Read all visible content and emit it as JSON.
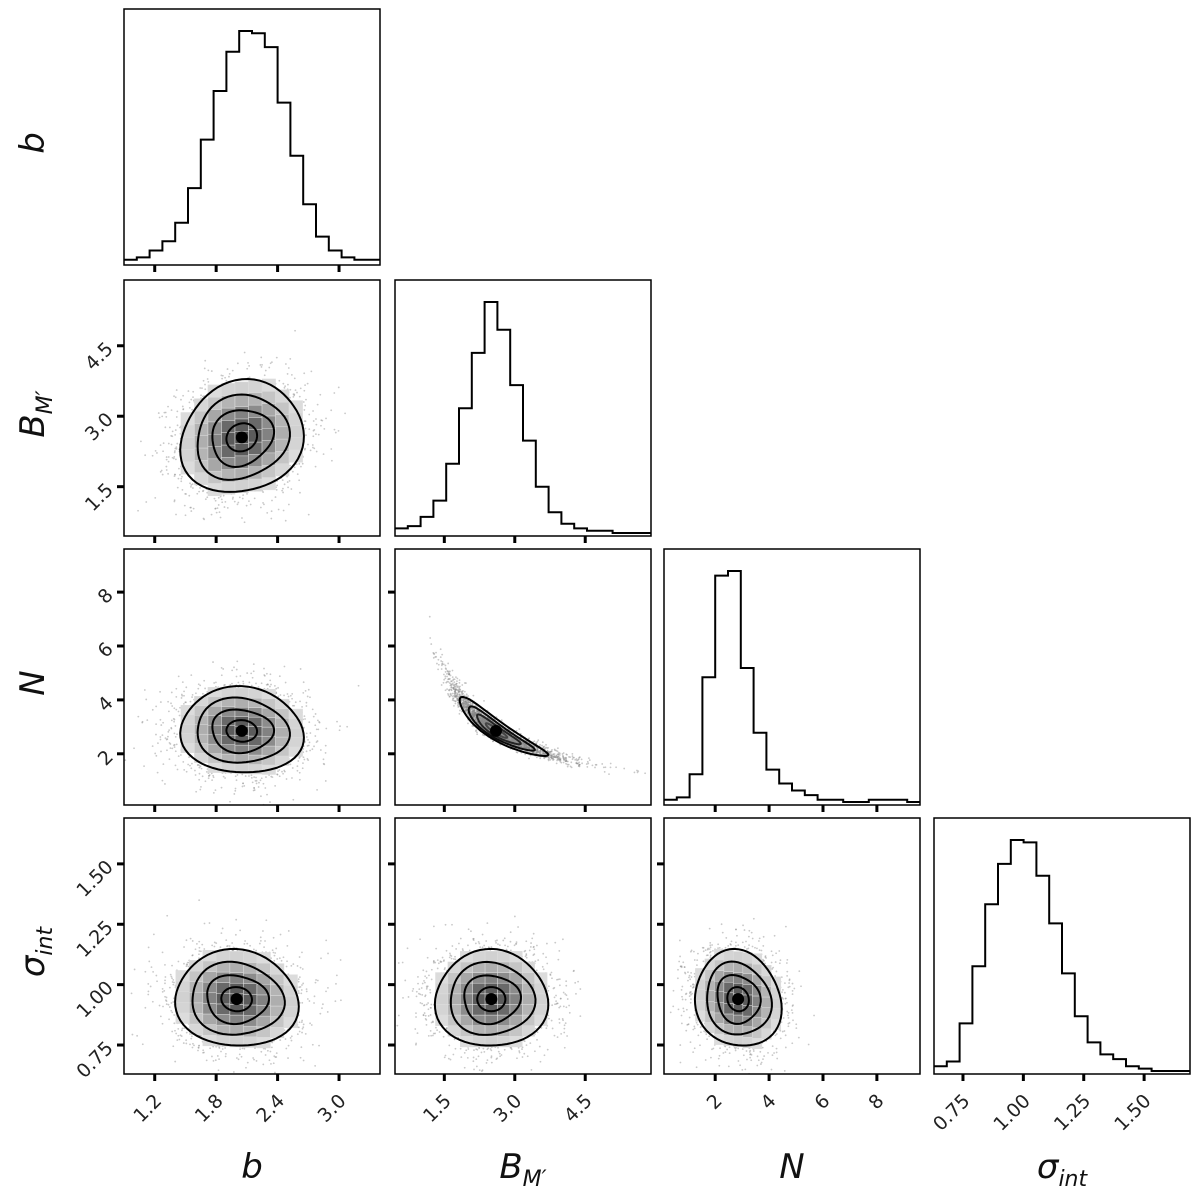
{
  "chart_data": {
    "type": "corner",
    "params": [
      {
        "key": "b",
        "label": "b",
        "sub": "",
        "range": [
          0.9,
          3.4
        ],
        "ticks": [
          1.2,
          1.8,
          2.4,
          3.0
        ],
        "tick_labels": [
          "1.2",
          "1.8",
          "2.4",
          "3.0"
        ]
      },
      {
        "key": "BM",
        "label": "B",
        "sub": "M′",
        "range": [
          0.45,
          5.9
        ],
        "ticks": [
          1.5,
          3.0,
          4.5
        ],
        "tick_labels": [
          "1.5",
          "3.0",
          "4.5"
        ]
      },
      {
        "key": "N",
        "label": "N",
        "sub": "",
        "range": [
          0.1,
          9.6
        ],
        "ticks": [
          2,
          4,
          6,
          8
        ],
        "tick_labels": [
          "2",
          "4",
          "6",
          "8"
        ]
      },
      {
        "key": "sigma",
        "label": "σ",
        "sub": "int",
        "range": [
          0.63,
          1.69
        ],
        "ticks": [
          0.75,
          1.0,
          1.25,
          1.5
        ],
        "tick_labels": [
          "0.75",
          "1.00",
          "1.25",
          "1.50"
        ]
      }
    ],
    "histograms": [
      {
        "param": "b",
        "edges_range": [
          0.9,
          3.4
        ],
        "counts": [
          1,
          2,
          5,
          9,
          17,
          32,
          53,
          74,
          91,
          100,
          99,
          93,
          69,
          46,
          25,
          11,
          5,
          2,
          1,
          1
        ]
      },
      {
        "param": "BM",
        "edges_range": [
          0.45,
          5.9
        ],
        "counts": [
          2,
          3,
          7,
          14,
          30,
          54,
          78,
          100,
          88,
          64,
          40,
          20,
          9,
          4,
          2,
          1,
          1,
          0,
          0,
          0
        ]
      },
      {
        "param": "N",
        "edges_range": [
          0.1,
          9.6
        ],
        "counts": [
          1,
          2,
          12,
          54,
          98,
          100,
          58,
          30,
          14,
          8,
          5,
          3,
          1,
          1,
          0,
          0,
          1,
          1,
          1,
          0
        ]
      },
      {
        "param": "sigma",
        "edges_range": [
          0.63,
          1.69
        ],
        "counts": [
          2,
          4,
          20,
          44,
          70,
          87,
          97,
          96,
          82,
          62,
          41,
          23,
          12,
          7,
          5,
          2,
          1,
          0,
          0,
          0
        ]
      }
    ],
    "joint": [
      {
        "x": "b",
        "y": "BM",
        "center": [
          2.05,
          2.55
        ],
        "sd": [
          0.3,
          0.6
        ],
        "rho": 0.12
      },
      {
        "x": "b",
        "y": "N",
        "center": [
          2.05,
          2.85
        ],
        "sd": [
          0.3,
          0.8
        ],
        "rho": -0.05
      },
      {
        "x": "BM",
        "y": "N",
        "center": [
          2.6,
          2.85
        ],
        "sd": [
          0.6,
          0.8
        ],
        "rho": -0.95
      },
      {
        "x": "b",
        "y": "sigma",
        "center": [
          2.0,
          0.94
        ],
        "sd": [
          0.3,
          0.1
        ],
        "rho": -0.05
      },
      {
        "x": "BM",
        "y": "sigma",
        "center": [
          2.5,
          0.94
        ],
        "sd": [
          0.6,
          0.1
        ],
        "rho": 0.0
      },
      {
        "x": "N",
        "y": "sigma",
        "center": [
          2.85,
          0.94
        ],
        "sd": [
          0.8,
          0.1
        ],
        "rho": -0.1
      }
    ],
    "contour_levels_sigma": [
      0.5,
      1.0,
      1.5,
      2.0
    ],
    "grid": false,
    "legend": "none"
  }
}
